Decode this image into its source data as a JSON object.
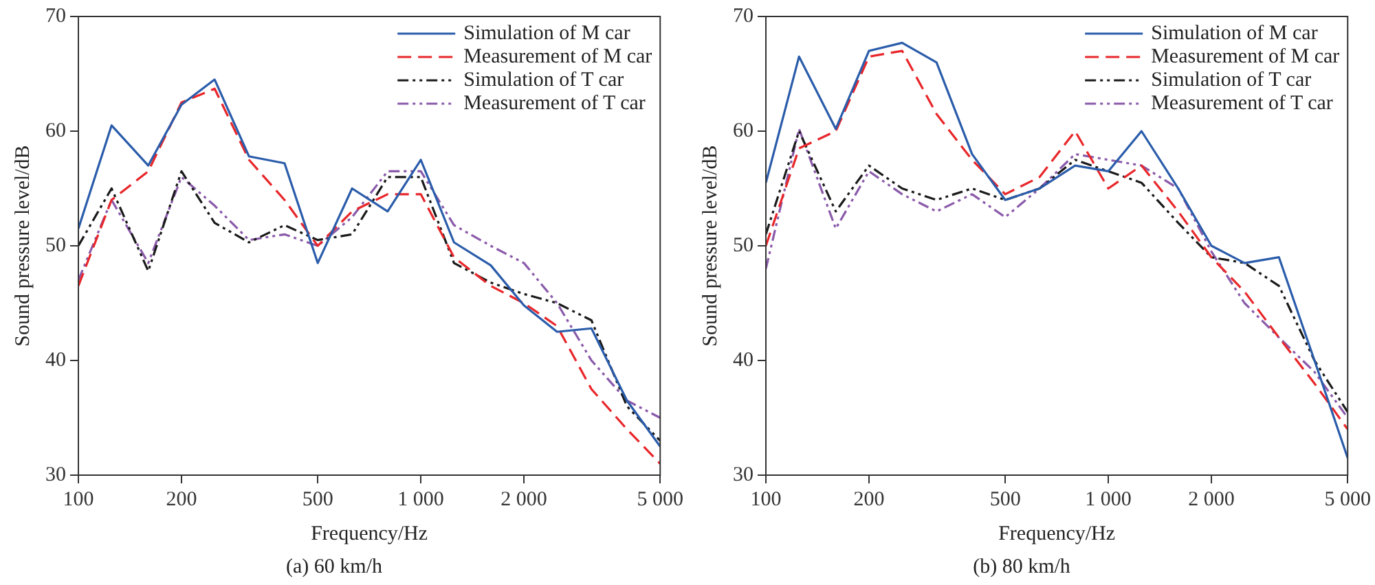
{
  "chart_data": [
    {
      "type": "line",
      "title": "(a) 60 km/h",
      "xlabel": "Frequency/Hz",
      "ylabel": "Sound pressure level/dB",
      "x": [
        100,
        125,
        160,
        200,
        250,
        315,
        400,
        500,
        630,
        800,
        1000,
        1250,
        1600,
        2000,
        2500,
        3150,
        4000,
        5000
      ],
      "series": [
        {
          "name": "Simulation of M car",
          "color": "#2a5caa",
          "line_style": "solid",
          "values": [
            51.5,
            60.5,
            57,
            62.3,
            64.5,
            57.8,
            57.2,
            48.5,
            55,
            53,
            57.5,
            50.3,
            48.3,
            44.8,
            42.5,
            42.8,
            36.5,
            32.5
          ]
        },
        {
          "name": "Measurement of M car",
          "color": "#e8262a",
          "line_style": "dashed",
          "values": [
            46.5,
            54,
            56.5,
            62.5,
            63.7,
            57.5,
            54,
            50,
            53,
            54.5,
            54.5,
            49,
            46.5,
            45,
            43,
            37.5,
            34,
            31
          ]
        },
        {
          "name": "Simulation of T car",
          "color": "#1a1a1a",
          "line_style": "dotted",
          "values": [
            50,
            55,
            47.8,
            56.5,
            52,
            50.3,
            51.8,
            50.5,
            51,
            56,
            56,
            48.5,
            46.8,
            45.8,
            45,
            43.5,
            36,
            33
          ]
        },
        {
          "name": "Measurement of T car",
          "color": "#8a5aaa",
          "line_style": "dotted",
          "values": [
            47,
            54,
            48.5,
            56,
            53.5,
            50.5,
            51,
            50,
            52.5,
            56.5,
            56.5,
            51.8,
            50,
            48.5,
            45,
            40,
            36.5,
            35
          ]
        }
      ],
      "log": "x",
      "xlim": [
        100,
        5000
      ],
      "xticks": [
        100,
        200,
        500,
        {
          "value": 1000,
          "label": "1 000"
        },
        {
          "value": 2000,
          "label": "2 000"
        },
        {
          "value": 5000,
          "label": "5 000"
        }
      ],
      "ylim": [
        30,
        70
      ],
      "yticks": [
        30,
        40,
        50,
        60,
        70
      ],
      "grid": false,
      "legend": "top right",
      "marker": "none"
    },
    {
      "type": "line",
      "title": "(b) 80 km/h",
      "xlabel": "Frequency/Hz",
      "ylabel": "Sound pressure level/dB",
      "x": [
        100,
        125,
        160,
        200,
        250,
        315,
        400,
        500,
        630,
        800,
        1000,
        1250,
        1600,
        2000,
        2500,
        3150,
        4000,
        5000
      ],
      "series": [
        {
          "name": "Simulation of M car",
          "color": "#2a5caa",
          "line_style": "solid",
          "values": [
            55.5,
            66.5,
            60.2,
            67,
            67.7,
            66,
            58,
            54,
            55,
            57,
            56.5,
            60,
            55,
            50,
            48.5,
            49,
            40,
            31.5
          ]
        },
        {
          "name": "Measurement of M car",
          "color": "#e8262a",
          "line_style": "dashed",
          "values": [
            50,
            58.5,
            60,
            66.5,
            67,
            61.5,
            57.5,
            54.5,
            56,
            60,
            55,
            57,
            53,
            49,
            46,
            42,
            38,
            34
          ]
        },
        {
          "name": "Simulation of T car",
          "color": "#1a1a1a",
          "line_style": "dotted",
          "values": [
            51,
            60,
            53,
            57,
            55,
            54,
            55,
            54,
            55,
            57.5,
            56.5,
            55.5,
            52,
            49,
            48.5,
            46.5,
            40,
            35.5
          ]
        },
        {
          "name": "Measurement of T car",
          "color": "#8a5aaa",
          "line_style": "dotted",
          "values": [
            48,
            60.2,
            51.5,
            56.5,
            54.5,
            53,
            54.5,
            52.5,
            55,
            58,
            57.5,
            57,
            55,
            49.5,
            45,
            42,
            39,
            35
          ]
        }
      ],
      "log": "x",
      "xlim": [
        100,
        5000
      ],
      "xticks": [
        100,
        200,
        500,
        {
          "value": 1000,
          "label": "1 000"
        },
        {
          "value": 2000,
          "label": "2 000"
        },
        {
          "value": 5000,
          "label": "5 000"
        }
      ],
      "ylim": [
        30,
        70
      ],
      "yticks": [
        30,
        40,
        50,
        60,
        70
      ],
      "grid": false,
      "legend": "top right",
      "marker": "none"
    }
  ]
}
